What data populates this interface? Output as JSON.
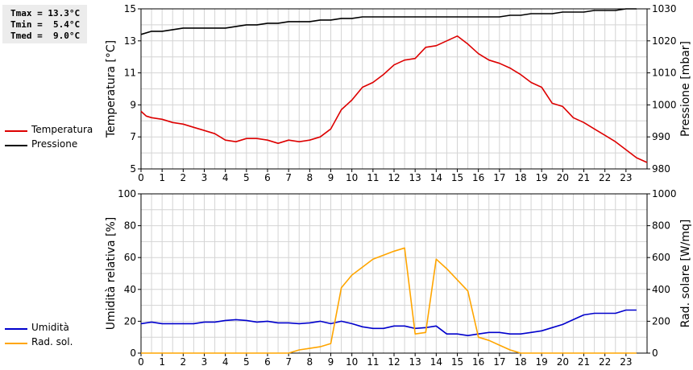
{
  "stats": {
    "tmax": "Tmax = 13.3°C",
    "tmin": "Tmin =  5.4°C",
    "tmed": "Tmed =  9.0°C"
  },
  "chart_data": [
    {
      "type": "line",
      "ylabel": "Temperatura [°C]",
      "y2label": "Pressione [mbar]",
      "ylim": [
        5,
        15
      ],
      "yticks": [
        5,
        7,
        9,
        11,
        13,
        15
      ],
      "y2lim": [
        980,
        1030
      ],
      "y2ticks": [
        980,
        990,
        1000,
        1010,
        1020,
        1030
      ],
      "xlim": [
        0,
        24
      ],
      "xticks": [
        "0",
        "1",
        "2",
        "3",
        "4",
        "5",
        "6",
        "7",
        "8",
        "9",
        "10",
        "11",
        "12",
        "13",
        "14",
        "15",
        "16",
        "17",
        "18",
        "19",
        "20",
        "21",
        "22",
        "23"
      ],
      "grid": true,
      "legend_position": "left",
      "series": [
        {
          "name": "Temperatura",
          "axis": "left",
          "color": "#dd0000",
          "points": [
            [
              0,
              8.6
            ],
            [
              0.25,
              8.3
            ],
            [
              0.5,
              8.2
            ],
            [
              1,
              8.1
            ],
            [
              1.5,
              7.9
            ],
            [
              2,
              7.8
            ],
            [
              2.5,
              7.6
            ],
            [
              3,
              7.4
            ],
            [
              3.5,
              7.2
            ],
            [
              4,
              6.8
            ],
            [
              4.5,
              6.7
            ],
            [
              5,
              6.9
            ],
            [
              5.5,
              6.9
            ],
            [
              6,
              6.8
            ],
            [
              6.5,
              6.6
            ],
            [
              7,
              6.8
            ],
            [
              7.5,
              6.7
            ],
            [
              8,
              6.8
            ],
            [
              8.5,
              7.0
            ],
            [
              9,
              7.5
            ],
            [
              9.5,
              8.7
            ],
            [
              10,
              9.3
            ],
            [
              10.5,
              10.1
            ],
            [
              11,
              10.4
            ],
            [
              11.5,
              10.9
            ],
            [
              12,
              11.5
            ],
            [
              12.5,
              11.8
            ],
            [
              13,
              11.9
            ],
            [
              13.5,
              12.6
            ],
            [
              14,
              12.7
            ],
            [
              14.5,
              13.0
            ],
            [
              15,
              13.3
            ],
            [
              15.5,
              12.8
            ],
            [
              16,
              12.2
            ],
            [
              16.5,
              11.8
            ],
            [
              17,
              11.6
            ],
            [
              17.5,
              11.3
            ],
            [
              18,
              10.9
            ],
            [
              18.5,
              10.4
            ],
            [
              19,
              10.1
            ],
            [
              19.5,
              9.1
            ],
            [
              20,
              8.9
            ],
            [
              20.5,
              8.2
            ],
            [
              21,
              7.9
            ],
            [
              21.5,
              7.5
            ],
            [
              22,
              7.1
            ],
            [
              22.5,
              6.7
            ],
            [
              23,
              6.2
            ],
            [
              23.5,
              5.7
            ],
            [
              24,
              5.4
            ]
          ]
        },
        {
          "name": "Pressione",
          "axis": "right",
          "color": "#000000",
          "points": [
            [
              0,
              1022
            ],
            [
              0.5,
              1023
            ],
            [
              1,
              1023
            ],
            [
              1.5,
              1023.5
            ],
            [
              2,
              1024
            ],
            [
              2.5,
              1024
            ],
            [
              3,
              1024
            ],
            [
              3.5,
              1024
            ],
            [
              4,
              1024
            ],
            [
              4.5,
              1024.5
            ],
            [
              5,
              1025
            ],
            [
              5.5,
              1025
            ],
            [
              6,
              1025.5
            ],
            [
              6.5,
              1025.5
            ],
            [
              7,
              1026
            ],
            [
              7.5,
              1026
            ],
            [
              8,
              1026
            ],
            [
              8.5,
              1026.5
            ],
            [
              9,
              1026.5
            ],
            [
              9.5,
              1027
            ],
            [
              10,
              1027
            ],
            [
              10.5,
              1027.5
            ],
            [
              11,
              1027.5
            ],
            [
              12,
              1027.5
            ],
            [
              13,
              1027.5
            ],
            [
              14,
              1027.5
            ],
            [
              15,
              1027.5
            ],
            [
              16,
              1027.5
            ],
            [
              16.5,
              1027.5
            ],
            [
              17,
              1027.5
            ],
            [
              17.5,
              1028
            ],
            [
              18,
              1028
            ],
            [
              18.5,
              1028.5
            ],
            [
              19,
              1028.5
            ],
            [
              19.5,
              1028.5
            ],
            [
              20,
              1029
            ],
            [
              20.5,
              1029
            ],
            [
              21,
              1029
            ],
            [
              21.5,
              1029.5
            ],
            [
              22,
              1029.5
            ],
            [
              22.5,
              1029.5
            ],
            [
              23,
              1030
            ],
            [
              23.5,
              1030
            ]
          ]
        }
      ]
    },
    {
      "type": "line",
      "ylabel": "Umidità relativa [%]",
      "y2label": "Rad. solare [W/mq]",
      "ylim": [
        0,
        100
      ],
      "yticks": [
        0,
        20,
        40,
        60,
        80,
        100
      ],
      "y2lim": [
        0,
        1000
      ],
      "y2ticks": [
        0,
        200,
        400,
        600,
        800,
        1000
      ],
      "xlim": [
        0,
        24
      ],
      "xticks": [
        "0",
        "1",
        "2",
        "3",
        "4",
        "5",
        "6",
        "7",
        "8",
        "9",
        "10",
        "11",
        "12",
        "13",
        "14",
        "15",
        "16",
        "17",
        "18",
        "19",
        "20",
        "21",
        "22",
        "23"
      ],
      "grid": true,
      "legend_position": "left",
      "series": [
        {
          "name": "Umidità",
          "axis": "left",
          "color": "#0000cc",
          "points": [
            [
              0,
              18.5
            ],
            [
              0.5,
              19.5
            ],
            [
              1,
              18.5
            ],
            [
              1.5,
              18.5
            ],
            [
              2,
              18.5
            ],
            [
              2.5,
              18.5
            ],
            [
              3,
              19.5
            ],
            [
              3.5,
              19.5
            ],
            [
              4,
              20.5
            ],
            [
              4.5,
              21
            ],
            [
              5,
              20.5
            ],
            [
              5.5,
              19.5
            ],
            [
              6,
              20
            ],
            [
              6.5,
              19
            ],
            [
              7,
              19
            ],
            [
              7.5,
              18.5
            ],
            [
              8,
              19
            ],
            [
              8.5,
              20
            ],
            [
              9,
              18.5
            ],
            [
              9.5,
              20
            ],
            [
              10,
              18.5
            ],
            [
              10.5,
              16.5
            ],
            [
              11,
              15.5
            ],
            [
              11.5,
              15.5
            ],
            [
              12,
              17
            ],
            [
              12.5,
              17
            ],
            [
              13,
              15.5
            ],
            [
              13.5,
              16
            ],
            [
              14,
              17
            ],
            [
              14.5,
              12
            ],
            [
              15,
              12
            ],
            [
              15.5,
              11
            ],
            [
              16,
              12
            ],
            [
              16.5,
              13
            ],
            [
              17,
              13
            ],
            [
              17.5,
              12
            ],
            [
              18,
              12
            ],
            [
              18.5,
              13
            ],
            [
              19,
              14
            ],
            [
              19.5,
              16
            ],
            [
              20,
              18
            ],
            [
              20.5,
              21
            ],
            [
              21,
              24
            ],
            [
              21.5,
              25
            ],
            [
              22,
              25
            ],
            [
              22.5,
              25
            ],
            [
              23,
              27
            ],
            [
              23.5,
              27
            ]
          ]
        },
        {
          "name": "Rad. sol.",
          "axis": "right",
          "color": "#ffa500",
          "points": [
            [
              0,
              0
            ],
            [
              1,
              0
            ],
            [
              2,
              0
            ],
            [
              3,
              0
            ],
            [
              4,
              0
            ],
            [
              5,
              0
            ],
            [
              6,
              0
            ],
            [
              7,
              0
            ],
            [
              7.5,
              20
            ],
            [
              8,
              30
            ],
            [
              8.5,
              40
            ],
            [
              9,
              60
            ],
            [
              9.5,
              410
            ],
            [
              10,
              490
            ],
            [
              10.5,
              540
            ],
            [
              11,
              590
            ],
            [
              11.5,
              615
            ],
            [
              12,
              640
            ],
            [
              12.5,
              660
            ],
            [
              13,
              120
            ],
            [
              13.5,
              130
            ],
            [
              14,
              590
            ],
            [
              14.5,
              530
            ],
            [
              15,
              460
            ],
            [
              15.5,
              390
            ],
            [
              16,
              100
            ],
            [
              16.5,
              80
            ],
            [
              17,
              50
            ],
            [
              17.5,
              20
            ],
            [
              18,
              0
            ],
            [
              19,
              0
            ],
            [
              20,
              0
            ],
            [
              21,
              0
            ],
            [
              22,
              0
            ],
            [
              23,
              0
            ],
            [
              23.5,
              0
            ]
          ]
        }
      ]
    }
  ]
}
